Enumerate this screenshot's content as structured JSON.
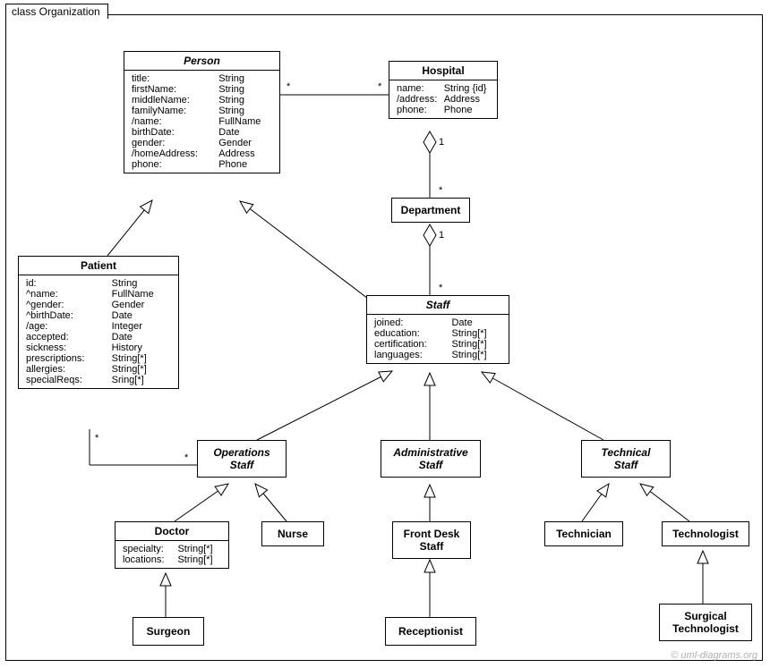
{
  "frame": {
    "title": "class Organization"
  },
  "copyright": "© uml-diagrams.org",
  "classes": {
    "Person": {
      "name": "Person",
      "italic": true,
      "attrs": [
        [
          "title:",
          "String"
        ],
        [
          "firstName:",
          "String"
        ],
        [
          "middleName:",
          "String"
        ],
        [
          "familyName:",
          "String"
        ],
        [
          "/name:",
          "FullName"
        ],
        [
          "birthDate:",
          "Date"
        ],
        [
          "gender:",
          "Gender"
        ],
        [
          "/homeAddress:",
          "Address"
        ],
        [
          "phone:",
          "Phone"
        ]
      ]
    },
    "Hospital": {
      "name": "Hospital",
      "attrs": [
        [
          "name:",
          "String {id}"
        ],
        [
          "/address:",
          "Address"
        ],
        [
          "phone:",
          "Phone"
        ]
      ]
    },
    "Department": {
      "name": "Department",
      "attrs": []
    },
    "Patient": {
      "name": "Patient",
      "attrs": [
        [
          "id:",
          "String"
        ],
        [
          "^name:",
          "FullName"
        ],
        [
          "^gender:",
          "Gender"
        ],
        [
          "^birthDate:",
          "Date"
        ],
        [
          "/age:",
          "Integer"
        ],
        [
          "accepted:",
          "Date"
        ],
        [
          "sickness:",
          "History"
        ],
        [
          "prescriptions:",
          "String[*]"
        ],
        [
          "allergies:",
          "String[*]"
        ],
        [
          "specialReqs:",
          "Sring[*]"
        ]
      ]
    },
    "Staff": {
      "name": "Staff",
      "italic": true,
      "attrs": [
        [
          "joined:",
          "Date"
        ],
        [
          "education:",
          "String[*]"
        ],
        [
          "certification:",
          "String[*]"
        ],
        [
          "languages:",
          "String[*]"
        ]
      ]
    },
    "OperationsStaff": {
      "name": "Operations\nStaff",
      "italic": true,
      "attrs": []
    },
    "AdministrativeStaff": {
      "name": "Administrative\nStaff",
      "italic": true,
      "attrs": []
    },
    "TechnicalStaff": {
      "name": "Technical\nStaff",
      "italic": true,
      "attrs": []
    },
    "Doctor": {
      "name": "Doctor",
      "attrs": [
        [
          "specialty:",
          "String[*]"
        ],
        [
          "locations:",
          "String[*]"
        ]
      ]
    },
    "Nurse": {
      "name": "Nurse",
      "attrs": []
    },
    "FrontDeskStaff": {
      "name": "Front Desk\nStaff",
      "attrs": []
    },
    "Receptionist": {
      "name": "Receptionist",
      "attrs": []
    },
    "Technician": {
      "name": "Technician",
      "attrs": []
    },
    "Technologist": {
      "name": "Technologist",
      "attrs": []
    },
    "SurgicalTechnologist": {
      "name": "Surgical\nTechnologist",
      "attrs": []
    },
    "Surgeon": {
      "name": "Surgeon",
      "attrs": []
    }
  },
  "mult": {
    "PersonHospital_P": "*",
    "PersonHospital_H": "*",
    "HospitalDept_H": "1",
    "HospitalDept_D": "*",
    "DeptStaff_D": "1",
    "DeptStaff_S": "*",
    "PatientOps_P": "*",
    "PatientOps_O": "*"
  },
  "style": {
    "border_color": "#000000",
    "background_color": "#ffffff",
    "font_family": "Arial",
    "title_fontsize": 12,
    "attr_fontsize": 11,
    "line_color": "#000000",
    "line_width": 1,
    "diamond_fill": "#ffffff",
    "triangle_fill": "#ffffff",
    "copyright_color": "#b0b0b0"
  }
}
